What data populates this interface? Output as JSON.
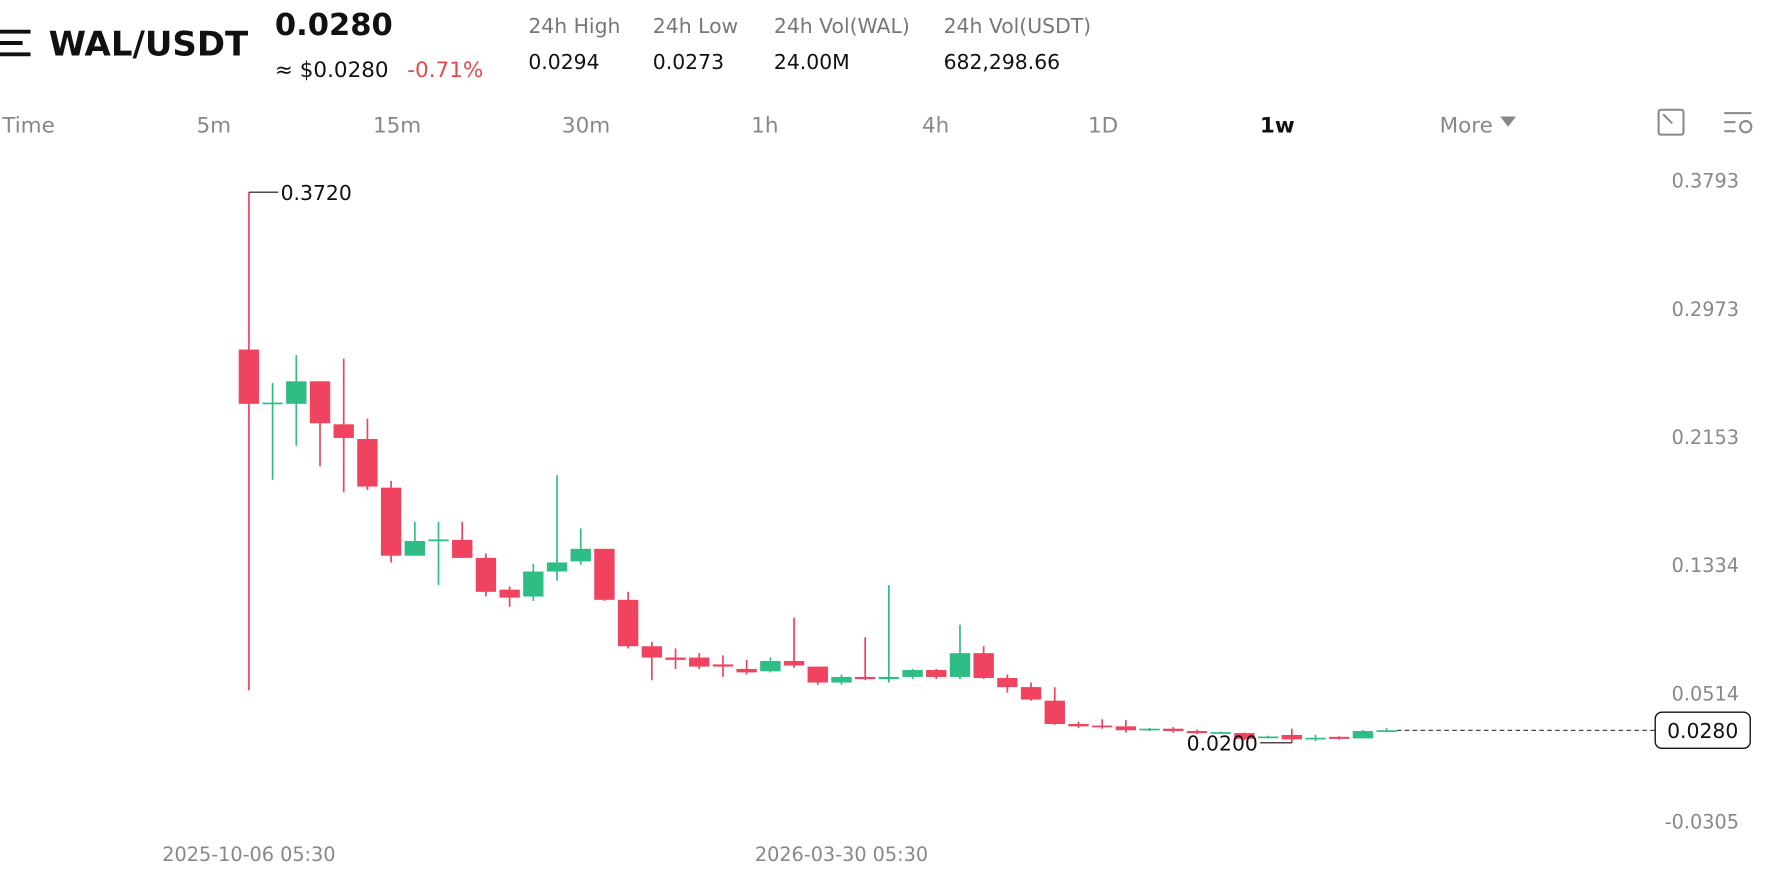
{
  "header": {
    "pair": "WAL/USDT",
    "price": "0.0280",
    "usd_price": "≈ $0.0280",
    "change": "-0.71%",
    "stats": [
      {
        "label": "24h High",
        "value": "0.0294"
      },
      {
        "label": "24h Low",
        "value": "0.0273"
      },
      {
        "label": "24h Vol(WAL)",
        "value": "24.00M"
      },
      {
        "label": "24h Vol(USDT)",
        "value": "682,298.66"
      }
    ]
  },
  "tabs": [
    {
      "label": "Time"
    },
    {
      "label": "5m"
    },
    {
      "label": "15m"
    },
    {
      "label": "30m"
    },
    {
      "label": "1h"
    },
    {
      "label": "4h"
    },
    {
      "label": "1D"
    },
    {
      "label": "1w",
      "active": true
    },
    {
      "label": "More"
    }
  ],
  "chart_data": {
    "type": "candlestick",
    "up_color": "#2ebd85",
    "down_color": "#f0435f",
    "categories": [
      "2025-10-06 05:30",
      null,
      null,
      null,
      null,
      null,
      null,
      null,
      null,
      null,
      null,
      null,
      null,
      null,
      null,
      null,
      null,
      null,
      null,
      null,
      null,
      null,
      null,
      null,
      null,
      "2026-03-30 05:30",
      null,
      null,
      null,
      null,
      null,
      null,
      null,
      null,
      null,
      null,
      null,
      null,
      null,
      null,
      null,
      null,
      null,
      null,
      null,
      null,
      null,
      null,
      null
    ],
    "open": [
      0.2714,
      0.2367,
      0.2367,
      0.2511,
      0.2236,
      0.2142,
      0.1831,
      0.1396,
      0.1497,
      0.1497,
      0.1382,
      0.1179,
      0.1135,
      0.1295,
      0.136,
      0.144,
      0.1114,
      0.0817,
      0.0745,
      0.0745,
      0.0701,
      0.0672,
      0.0657,
      0.0723,
      0.0687,
      0.0585,
      0.0621,
      0.0607,
      0.0621,
      0.0665,
      0.0621,
      0.0773,
      0.0614,
      0.0556,
      0.0469,
      0.032,
      0.031,
      0.0305,
      0.028,
      0.029,
      0.0275,
      0.0262,
      0.0262,
      0.023,
      0.025,
      0.0222,
      0.0238,
      0.0228,
      0.0275
    ],
    "high": [
      0.372,
      0.25,
      0.2678,
      0.2511,
      0.2656,
      0.2272,
      0.1874,
      0.1613,
      0.1613,
      0.1613,
      0.1411,
      0.12,
      0.1345,
      0.191,
      0.157,
      0.144,
      0.1165,
      0.0846,
      0.0803,
      0.0774,
      0.0759,
      0.073,
      0.0745,
      0.1,
      0.0687,
      0.0636,
      0.0875,
      0.1208,
      0.0672,
      0.0672,
      0.0955,
      0.0817,
      0.0636,
      0.0585,
      0.0555,
      0.0335,
      0.035,
      0.0345,
      0.0295,
      0.03,
      0.0285,
      0.0272,
      0.0265,
      0.0245,
      0.029,
      0.025,
      0.0242,
      0.0282,
      0.0294
    ],
    "low": [
      0.0535,
      0.1881,
      0.2099,
      0.1968,
      0.1802,
      0.1816,
      0.1353,
      0.1396,
      0.1208,
      0.1382,
      0.1136,
      0.107,
      0.1107,
      0.1237,
      0.1338,
      0.1107,
      0.0803,
      0.06,
      0.0672,
      0.0672,
      0.0622,
      0.0636,
      0.065,
      0.0679,
      0.0571,
      0.0571,
      0.06,
      0.0585,
      0.0607,
      0.0607,
      0.0607,
      0.0607,
      0.052,
      0.0469,
      0.0315,
      0.0295,
      0.029,
      0.0265,
      0.0275,
      0.0265,
      0.0255,
      0.0258,
      0.0215,
      0.0228,
      0.02,
      0.021,
      0.022,
      0.0226,
      0.0273
    ],
    "close": [
      0.2367,
      0.2375,
      0.2511,
      0.2243,
      0.2149,
      0.1838,
      0.1396,
      0.149,
      0.15,
      0.1382,
      0.1165,
      0.1128,
      0.1295,
      0.1353,
      0.144,
      0.1114,
      0.0817,
      0.0745,
      0.073,
      0.0687,
      0.0687,
      0.065,
      0.0723,
      0.0694,
      0.0585,
      0.0621,
      0.0607,
      0.0621,
      0.0665,
      0.0621,
      0.0773,
      0.0614,
      0.0556,
      0.0476,
      0.032,
      0.0305,
      0.03,
      0.028,
      0.029,
      0.0275,
      0.0262,
      0.0268,
      0.0225,
      0.024,
      0.0222,
      0.0232,
      0.0225,
      0.0275,
      0.028
    ],
    "ylim": [
      -0.044,
      0.39
    ],
    "yticks": [
      0.3793,
      0.2973,
      0.2153,
      0.1334,
      0.0514,
      -0.0305
    ],
    "annotations": {
      "high": {
        "value": 0.372,
        "label": "0.3720"
      },
      "low": {
        "value": 0.02,
        "label": "0.0200"
      }
    },
    "last_price": {
      "value": 0.028,
      "label": "0.0280"
    }
  }
}
